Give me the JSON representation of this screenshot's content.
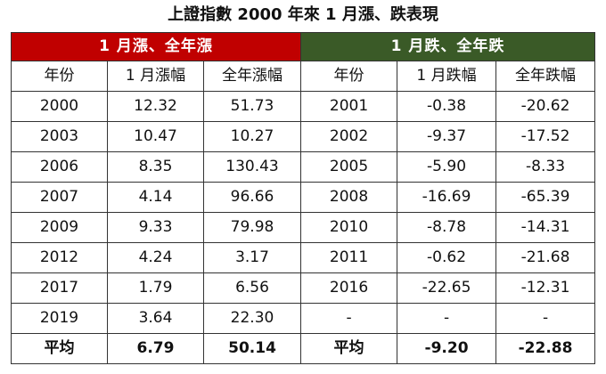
{
  "title": "上證指數 2000 年來 1 月漲、跌表現",
  "colors": {
    "up_header": "#c00000",
    "down_header": "#3a5a27",
    "border": "#333333"
  },
  "groups": {
    "up": "1 月漲、全年漲",
    "down": "1 月跌、全年跌"
  },
  "columns": {
    "up": [
      "年份",
      "1 月漲幅",
      "全年漲幅"
    ],
    "down": [
      "年份",
      "1 月跌幅",
      "全年跌幅"
    ]
  },
  "rows": [
    {
      "up": [
        "2000",
        "12.32",
        "51.73"
      ],
      "down": [
        "2001",
        "-0.38",
        "-20.62"
      ]
    },
    {
      "up": [
        "2003",
        "10.47",
        "10.27"
      ],
      "down": [
        "2002",
        "-9.37",
        "-17.52"
      ]
    },
    {
      "up": [
        "2006",
        "8.35",
        "130.43"
      ],
      "down": [
        "2005",
        "-5.90",
        "-8.33"
      ]
    },
    {
      "up": [
        "2007",
        "4.14",
        "96.66"
      ],
      "down": [
        "2008",
        "-16.69",
        "-65.39"
      ]
    },
    {
      "up": [
        "2009",
        "9.33",
        "79.98"
      ],
      "down": [
        "2010",
        "-8.78",
        "-14.31"
      ]
    },
    {
      "up": [
        "2012",
        "4.24",
        "3.17"
      ],
      "down": [
        "2011",
        "-0.62",
        "-21.68"
      ]
    },
    {
      "up": [
        "2017",
        "1.79",
        "6.56"
      ],
      "down": [
        "2016",
        "-22.65",
        "-12.31"
      ]
    },
    {
      "up": [
        "2019",
        "3.64",
        "22.30"
      ],
      "down": [
        "-",
        "-",
        "-"
      ]
    }
  ],
  "average": {
    "up": [
      "平均",
      "6.79",
      "50.14"
    ],
    "down": [
      "平均",
      "-9.20",
      "-22.88"
    ]
  }
}
